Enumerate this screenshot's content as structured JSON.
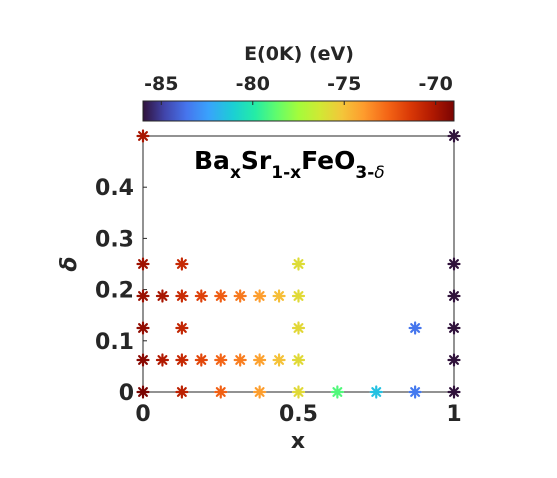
{
  "chart_data": {
    "type": "scatter",
    "title_parts": {
      "base1": "Ba",
      "sub1": "x",
      "base2": "Sr",
      "sub2": "1-x",
      "base3": "FeO",
      "sub3": "3-",
      "sub3_greek": "δ"
    },
    "xlabel": "x",
    "ylabel": "δ",
    "xlim": [
      0,
      1
    ],
    "ylim": [
      0,
      0.5
    ],
    "xticks": [
      0,
      0.5,
      1
    ],
    "xtick_labels": [
      "0",
      "0.5",
      "1"
    ],
    "yticks": [
      0,
      0.1,
      0.2,
      0.3,
      0.4
    ],
    "ytick_labels": [
      "0",
      "0.1",
      "0.2",
      "0.3",
      "0.4"
    ],
    "colorbar": {
      "label": "E(0K) (eV)",
      "range": [
        -86,
        -69
      ],
      "ticks": [
        -85,
        -80,
        -75,
        -70
      ],
      "tick_labels": [
        "-85",
        "-80",
        "-75",
        "-70"
      ],
      "colormap": "turbo",
      "location": "top"
    },
    "points": [
      {
        "x": 0,
        "y": 0,
        "e": -69.0
      },
      {
        "x": 0,
        "y": 0.0625,
        "e": -69.3
      },
      {
        "x": 0,
        "y": 0.125,
        "e": -69.5
      },
      {
        "x": 0,
        "y": 0.1875,
        "e": -69.7
      },
      {
        "x": 0,
        "y": 0.25,
        "e": -69.8
      },
      {
        "x": 0,
        "y": 0.5,
        "e": -70.0
      },
      {
        "x": 0.0625,
        "y": 0.0625,
        "e": -70.2
      },
      {
        "x": 0.0625,
        "y": 0.1875,
        "e": -70.0
      },
      {
        "x": 0.125,
        "y": 0,
        "e": -70.5
      },
      {
        "x": 0.125,
        "y": 0.0625,
        "e": -70.8
      },
      {
        "x": 0.125,
        "y": 0.125,
        "e": -70.7
      },
      {
        "x": 0.125,
        "y": 0.1875,
        "e": -70.9
      },
      {
        "x": 0.125,
        "y": 0.25,
        "e": -70.8
      },
      {
        "x": 0.1875,
        "y": 0.0625,
        "e": -71.8
      },
      {
        "x": 0.1875,
        "y": 0.1875,
        "e": -71.6
      },
      {
        "x": 0.25,
        "y": 0,
        "e": -72.5
      },
      {
        "x": 0.25,
        "y": 0.0625,
        "e": -72.6
      },
      {
        "x": 0.25,
        "y": 0.1875,
        "e": -72.4
      },
      {
        "x": 0.3125,
        "y": 0.0625,
        "e": -73.2
      },
      {
        "x": 0.3125,
        "y": 0.1875,
        "e": -73.1
      },
      {
        "x": 0.375,
        "y": 0,
        "e": -74.0
      },
      {
        "x": 0.375,
        "y": 0.0625,
        "e": -74.1
      },
      {
        "x": 0.375,
        "y": 0.1875,
        "e": -74.0
      },
      {
        "x": 0.4375,
        "y": 0.0625,
        "e": -75.0
      },
      {
        "x": 0.4375,
        "y": 0.1875,
        "e": -74.9
      },
      {
        "x": 0.5,
        "y": 0,
        "e": -75.8
      },
      {
        "x": 0.5,
        "y": 0.0625,
        "e": -75.8
      },
      {
        "x": 0.5,
        "y": 0.125,
        "e": -75.7
      },
      {
        "x": 0.5,
        "y": 0.1875,
        "e": -75.8
      },
      {
        "x": 0.5,
        "y": 0.25,
        "e": -75.9
      },
      {
        "x": 0.625,
        "y": 0,
        "e": -79.0
      },
      {
        "x": 0.75,
        "y": 0,
        "e": -81.5
      },
      {
        "x": 0.875,
        "y": 0,
        "e": -83.5
      },
      {
        "x": 0.875,
        "y": 0.125,
        "e": -83.6
      },
      {
        "x": 1,
        "y": 0,
        "e": -86.0
      },
      {
        "x": 1,
        "y": 0.0625,
        "e": -86.0
      },
      {
        "x": 1,
        "y": 0.125,
        "e": -86.0
      },
      {
        "x": 1,
        "y": 0.1875,
        "e": -86.0
      },
      {
        "x": 1,
        "y": 0.25,
        "e": -86.0
      },
      {
        "x": 1,
        "y": 0.5,
        "e": -86.0
      }
    ]
  }
}
